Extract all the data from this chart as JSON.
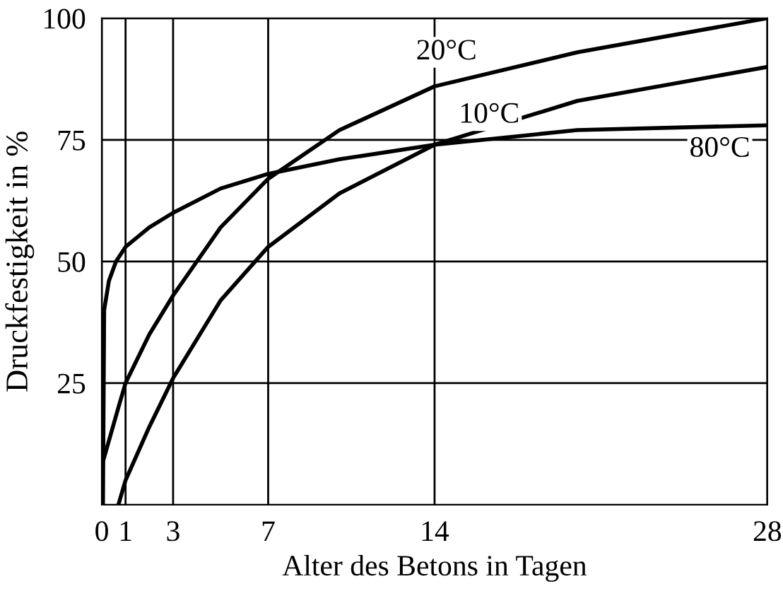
{
  "chart_data": {
    "type": "line",
    "xlabel": "Alter des Betons in Tagen",
    "ylabel": "Druckfestigkeit in %",
    "xlim": [
      0,
      28
    ],
    "ylim": [
      0,
      100
    ],
    "xticks": [
      0,
      1,
      3,
      7,
      14,
      28
    ],
    "yticks": [
      25,
      50,
      75,
      100
    ],
    "grid": true,
    "marker": "none",
    "line_style": "solid",
    "series": [
      {
        "name": "80°C",
        "color": "#000000",
        "x": [
          0.05,
          0.1,
          0.3,
          0.6,
          1,
          2,
          3,
          5,
          7,
          10,
          14,
          20,
          28
        ],
        "values": [
          0,
          40,
          46,
          50,
          53,
          57,
          60,
          65,
          68,
          71,
          74,
          77,
          78
        ]
      },
      {
        "name": "20°C",
        "color": "#000000",
        "x": [
          0,
          0.7,
          1,
          2,
          3,
          5,
          7,
          10,
          14,
          20,
          28
        ],
        "values": [
          8,
          20,
          25,
          35,
          43,
          57,
          67,
          77,
          86,
          93,
          100
        ]
      },
      {
        "name": "10°C",
        "color": "#000000",
        "x": [
          0.7,
          1,
          2,
          3,
          5,
          7,
          10,
          14,
          20,
          28
        ],
        "values": [
          0,
          5,
          16,
          26,
          42,
          53,
          64,
          74,
          83,
          90
        ]
      }
    ]
  }
}
